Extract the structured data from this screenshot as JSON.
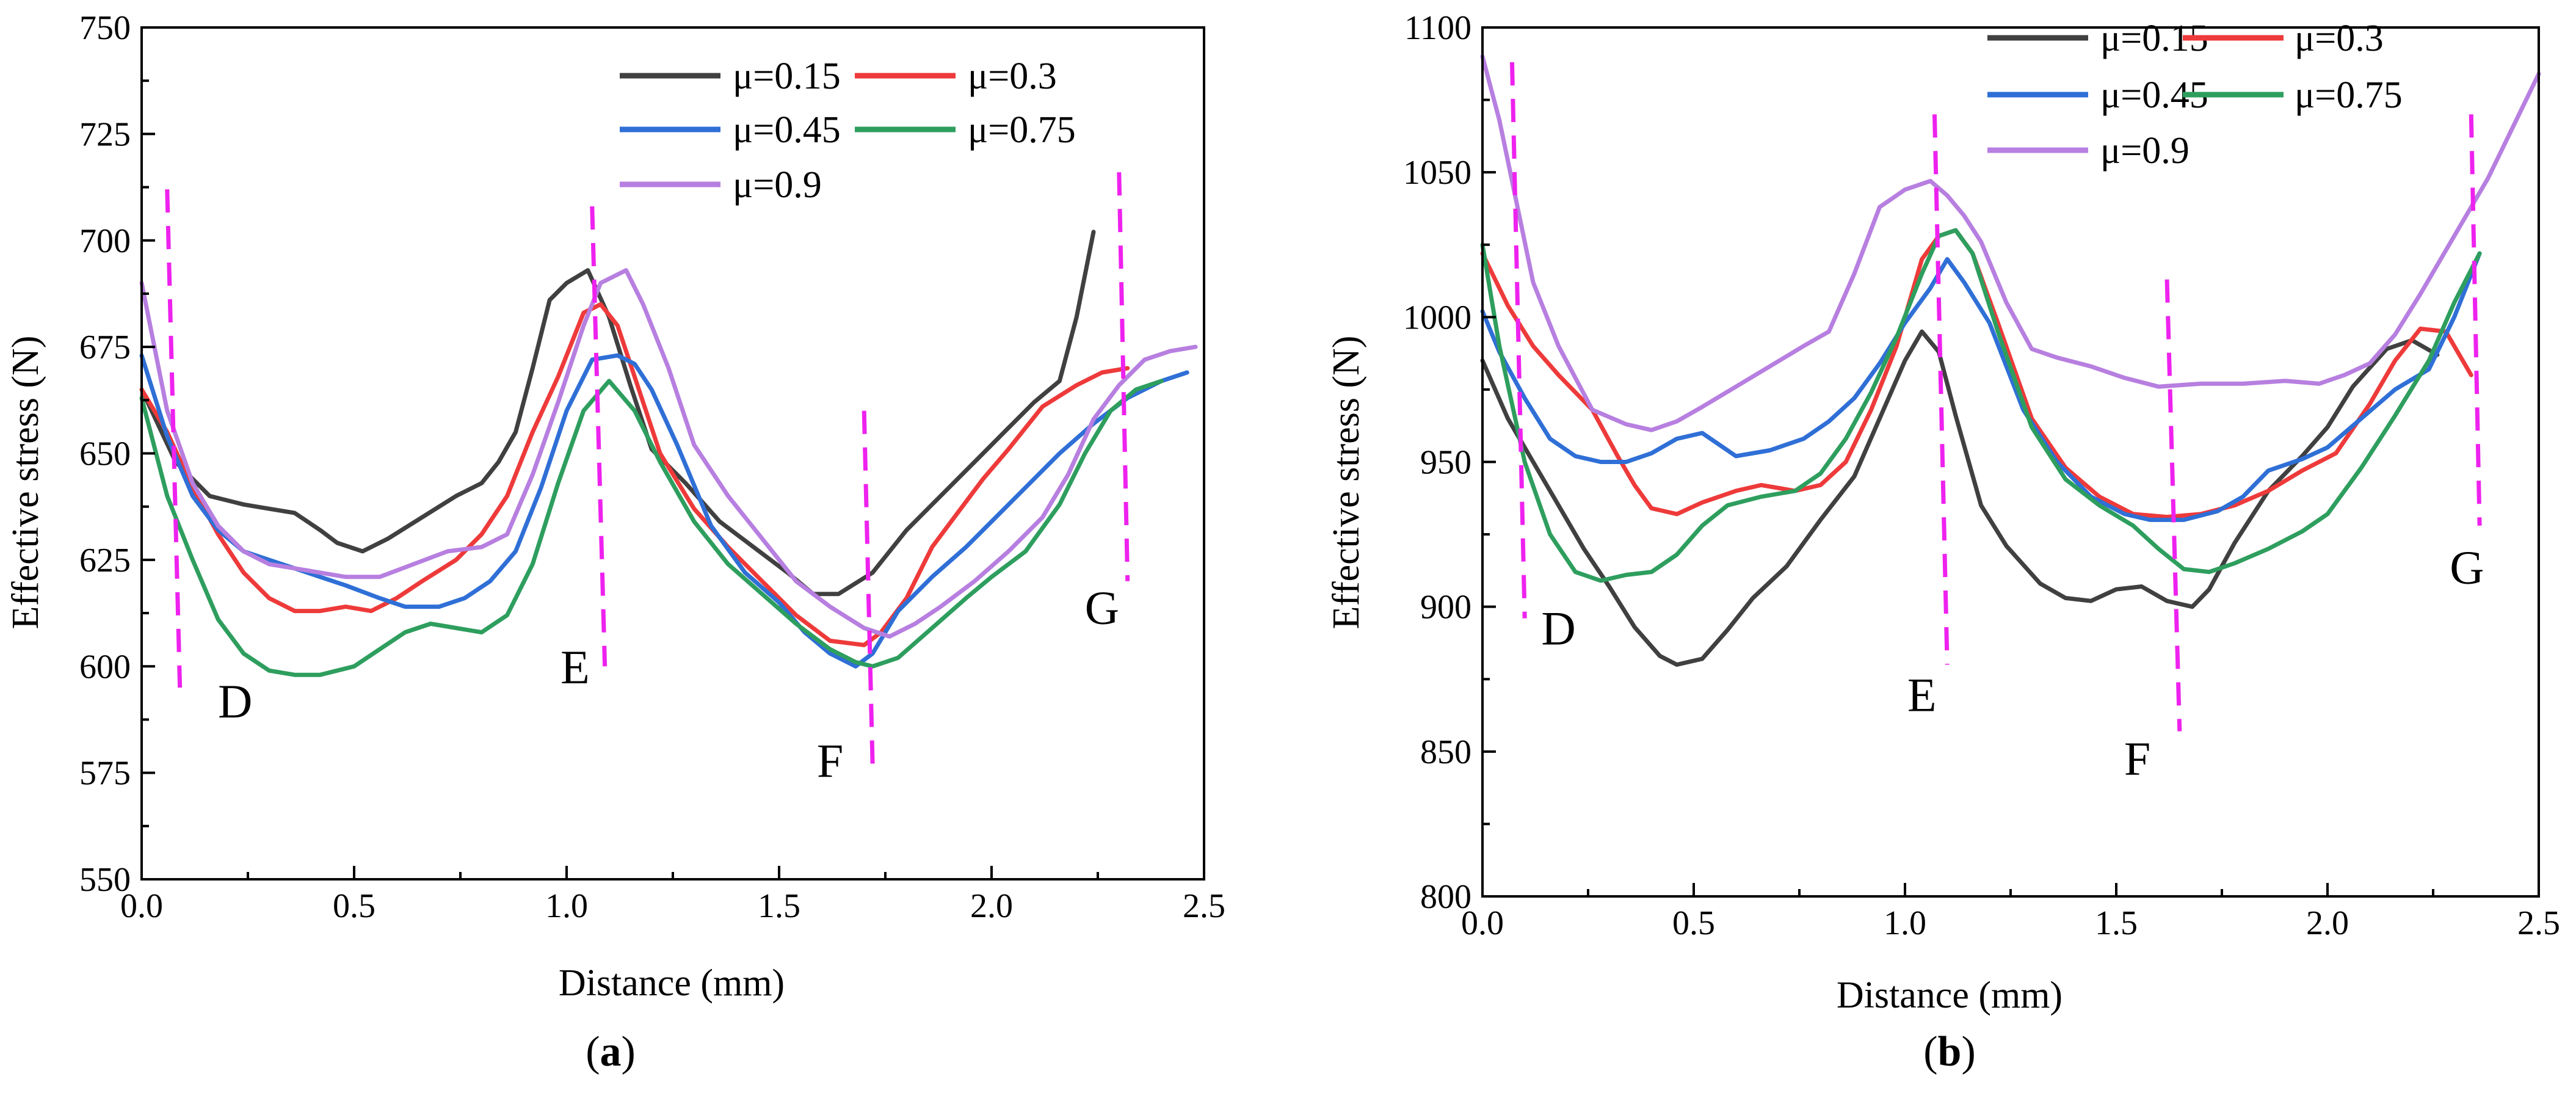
{
  "colors": {
    "mu_0_15": "#404040",
    "mu_0_3": "#ee3a3a",
    "mu_0_45": "#2f6fd6",
    "mu_0_75": "#2e9e5e",
    "mu_0_9": "#b77fe0",
    "divider": "#ee22ee"
  },
  "chart_data": [
    {
      "type": "line",
      "panel_label": {
        "open": "(",
        "letter": "a",
        "close": ")"
      },
      "xlabel": "Distance (mm)",
      "ylabel": "Effective stress (N)",
      "xlim": [
        0,
        2.5
      ],
      "ylim": [
        550,
        750
      ],
      "xticks": [
        0,
        0.5,
        1.0,
        1.5,
        2.0,
        2.5
      ],
      "xtick_labels": [
        "0.0",
        "0.5",
        "1.0",
        "1.5",
        "2.0",
        "2.5"
      ],
      "yticks": [
        550,
        575,
        600,
        625,
        650,
        675,
        700,
        725,
        750
      ],
      "ytick_labels": [
        "550",
        "575",
        "600",
        "625",
        "650",
        "675",
        "700",
        "725",
        "750"
      ],
      "legend": [
        "μ=0.15",
        "μ=0.3",
        "μ=0.45",
        "μ=0.75",
        "μ=0.9"
      ],
      "series": [
        {
          "name": "μ=0.15",
          "color_key": "mu_0_15",
          "x": [
            0,
            0.08,
            0.16,
            0.24,
            0.3,
            0.36,
            0.42,
            0.46,
            0.52,
            0.58,
            0.66,
            0.74,
            0.8,
            0.84,
            0.88,
            0.92,
            0.96,
            1.0,
            1.05,
            1.1,
            1.15,
            1.2,
            1.28,
            1.36,
            1.44,
            1.52,
            1.58,
            1.64,
            1.72,
            1.8,
            1.88,
            1.96,
            2.04,
            2.1,
            2.16,
            2.2,
            2.24
          ],
          "y": [
            665,
            648,
            640,
            638,
            637,
            636,
            632,
            629,
            627,
            630,
            635,
            640,
            643,
            648,
            655,
            670,
            686,
            690,
            693,
            682,
            666,
            651,
            643,
            634,
            628,
            622,
            617,
            617,
            622,
            632,
            640,
            648,
            656,
            662,
            667,
            682,
            702
          ]
        },
        {
          "name": "μ=0.3",
          "color_key": "mu_0_3",
          "x": [
            0,
            0.06,
            0.12,
            0.18,
            0.24,
            0.3,
            0.36,
            0.42,
            0.48,
            0.54,
            0.6,
            0.66,
            0.74,
            0.8,
            0.86,
            0.92,
            0.98,
            1.04,
            1.08,
            1.12,
            1.16,
            1.22,
            1.3,
            1.38,
            1.46,
            1.54,
            1.62,
            1.7,
            1.74,
            1.8,
            1.86,
            1.92,
            1.98,
            2.04,
            2.12,
            2.2,
            2.26,
            2.32
          ],
          "y": [
            665,
            655,
            642,
            631,
            622,
            616,
            613,
            613,
            614,
            613,
            616,
            620,
            625,
            631,
            640,
            655,
            668,
            683,
            685,
            680,
            668,
            650,
            637,
            628,
            620,
            612,
            606,
            605,
            608,
            616,
            628,
            636,
            644,
            651,
            661,
            666,
            669,
            670
          ]
        },
        {
          "name": "μ=0.45",
          "color_key": "mu_0_45",
          "x": [
            0,
            0.06,
            0.12,
            0.18,
            0.24,
            0.3,
            0.36,
            0.42,
            0.48,
            0.56,
            0.62,
            0.7,
            0.76,
            0.82,
            0.88,
            0.94,
            1.0,
            1.06,
            1.12,
            1.16,
            1.2,
            1.26,
            1.34,
            1.42,
            1.5,
            1.56,
            1.62,
            1.68,
            1.72,
            1.78,
            1.86,
            1.94,
            2.0,
            2.08,
            2.16,
            2.24,
            2.32,
            2.4,
            2.46
          ],
          "y": [
            673,
            654,
            640,
            632,
            627,
            625,
            623,
            621,
            619,
            616,
            614,
            614,
            616,
            620,
            627,
            642,
            660,
            672,
            673,
            671,
            665,
            652,
            633,
            622,
            615,
            608,
            603,
            600,
            603,
            613,
            621,
            628,
            634,
            642,
            650,
            657,
            663,
            667,
            669
          ]
        },
        {
          "name": "μ=0.75",
          "color_key": "mu_0_75",
          "x": [
            0,
            0.06,
            0.12,
            0.18,
            0.24,
            0.3,
            0.36,
            0.42,
            0.5,
            0.56,
            0.62,
            0.68,
            0.74,
            0.8,
            0.86,
            0.92,
            0.98,
            1.04,
            1.1,
            1.16,
            1.22,
            1.3,
            1.38,
            1.46,
            1.54,
            1.62,
            1.68,
            1.72,
            1.78,
            1.86,
            1.94,
            2.0,
            2.08,
            2.16,
            2.22,
            2.28,
            2.34,
            2.4
          ],
          "y": [
            663,
            640,
            625,
            611,
            603,
            599,
            598,
            598,
            600,
            604,
            608,
            610,
            609,
            608,
            612,
            624,
            643,
            660,
            667,
            660,
            648,
            634,
            624,
            617,
            610,
            604,
            601,
            600,
            602,
            609,
            616,
            621,
            627,
            638,
            650,
            660,
            665,
            667
          ]
        },
        {
          "name": "μ=0.9",
          "color_key": "mu_0_9",
          "x": [
            0,
            0.06,
            0.12,
            0.18,
            0.24,
            0.3,
            0.36,
            0.42,
            0.48,
            0.56,
            0.64,
            0.72,
            0.8,
            0.86,
            0.92,
            0.98,
            1.04,
            1.08,
            1.14,
            1.18,
            1.24,
            1.3,
            1.38,
            1.46,
            1.54,
            1.62,
            1.7,
            1.76,
            1.82,
            1.88,
            1.96,
            2.04,
            2.12,
            2.18,
            2.24,
            2.3,
            2.36,
            2.42,
            2.48
          ],
          "y": [
            690,
            660,
            643,
            633,
            627,
            624,
            623,
            622,
            621,
            621,
            624,
            627,
            628,
            631,
            645,
            662,
            680,
            690,
            693,
            685,
            670,
            652,
            640,
            630,
            620,
            614,
            609,
            607,
            610,
            614,
            620,
            627,
            635,
            645,
            658,
            666,
            672,
            674,
            675
          ]
        }
      ],
      "dividers": [
        {
          "x": [
            0.06,
            0.09
          ],
          "y": [
            712,
            595
          ]
        },
        {
          "x": [
            1.06,
            1.09
          ],
          "y": [
            708,
            600
          ]
        },
        {
          "x": [
            1.7,
            1.72
          ],
          "y": [
            660,
            577
          ]
        },
        {
          "x": [
            2.3,
            2.32
          ],
          "y": [
            716,
            620
          ]
        }
      ],
      "annotations": [
        {
          "text": "D",
          "x": 0.22,
          "y": 588
        },
        {
          "text": "E",
          "x": 1.02,
          "y": 596
        },
        {
          "text": "F",
          "x": 1.62,
          "y": 574
        },
        {
          "text": "G",
          "x": 2.26,
          "y": 610
        }
      ]
    },
    {
      "type": "line",
      "panel_label": {
        "open": "(",
        "letter": "b",
        "close": ")"
      },
      "xlabel": "Distance (mm)",
      "ylabel": "Effective stress (N)",
      "xlim": [
        0,
        2.5
      ],
      "ylim": [
        800,
        1100
      ],
      "xticks": [
        0,
        0.5,
        1.0,
        1.5,
        2.0,
        2.5
      ],
      "xtick_labels": [
        "0.0",
        "0.5",
        "1.0",
        "1.5",
        "2.0",
        "2.5"
      ],
      "yticks": [
        800,
        850,
        900,
        950,
        1000,
        1050,
        1100
      ],
      "ytick_labels": [
        "800",
        "850",
        "900",
        "950",
        "1000",
        "1050",
        "1100"
      ],
      "legend": [
        "μ=0.15",
        "μ=0.3",
        "μ=0.45",
        "μ=0.75",
        "μ=0.9"
      ],
      "series": [
        {
          "name": "μ=0.15",
          "color_key": "mu_0_15",
          "x": [
            0,
            0.06,
            0.12,
            0.18,
            0.24,
            0.3,
            0.36,
            0.42,
            0.46,
            0.52,
            0.58,
            0.64,
            0.72,
            0.8,
            0.88,
            0.94,
            1.0,
            1.04,
            1.08,
            1.12,
            1.18,
            1.24,
            1.32,
            1.38,
            1.44,
            1.5,
            1.56,
            1.62,
            1.68,
            1.72,
            1.78,
            1.86,
            1.94,
            2.0,
            2.06,
            2.14,
            2.2,
            2.26
          ],
          "y": [
            985,
            965,
            950,
            935,
            920,
            907,
            893,
            883,
            880,
            882,
            892,
            903,
            914,
            930,
            945,
            965,
            985,
            995,
            988,
            966,
            935,
            921,
            908,
            903,
            902,
            906,
            907,
            902,
            900,
            906,
            922,
            940,
            952,
            962,
            976,
            989,
            992,
            987
          ]
        },
        {
          "name": "μ=0.3",
          "color_key": "mu_0_3",
          "x": [
            0,
            0.06,
            0.12,
            0.18,
            0.26,
            0.32,
            0.36,
            0.4,
            0.46,
            0.52,
            0.6,
            0.66,
            0.74,
            0.8,
            0.86,
            0.92,
            0.98,
            1.04,
            1.08,
            1.12,
            1.16,
            1.22,
            1.3,
            1.38,
            1.46,
            1.54,
            1.62,
            1.7,
            1.78,
            1.86,
            1.94,
            2.02,
            2.1,
            2.16,
            2.22,
            2.28,
            2.34
          ],
          "y": [
            1022,
            1004,
            990,
            980,
            968,
            952,
            942,
            934,
            932,
            936,
            940,
            942,
            940,
            942,
            950,
            968,
            990,
            1020,
            1028,
            1030,
            1022,
            998,
            965,
            948,
            938,
            932,
            931,
            932,
            935,
            940,
            947,
            953,
            970,
            985,
            996,
            995,
            980
          ]
        },
        {
          "name": "μ=0.45",
          "color_key": "mu_0_45",
          "x": [
            0,
            0.04,
            0.1,
            0.16,
            0.22,
            0.28,
            0.34,
            0.4,
            0.46,
            0.52,
            0.6,
            0.68,
            0.76,
            0.82,
            0.88,
            0.94,
            1.0,
            1.06,
            1.1,
            1.14,
            1.2,
            1.28,
            1.36,
            1.44,
            1.52,
            1.58,
            1.66,
            1.74,
            1.8,
            1.86,
            1.94,
            2.0,
            2.08,
            2.16,
            2.24,
            2.3,
            2.36
          ],
          "y": [
            1002,
            988,
            972,
            958,
            952,
            950,
            950,
            953,
            958,
            960,
            952,
            954,
            958,
            964,
            972,
            984,
            998,
            1010,
            1020,
            1012,
            998,
            968,
            950,
            938,
            932,
            930,
            930,
            933,
            938,
            947,
            951,
            955,
            965,
            975,
            982,
            1000,
            1022
          ]
        },
        {
          "name": "μ=0.75",
          "color_key": "mu_0_75",
          "x": [
            0,
            0.04,
            0.1,
            0.16,
            0.22,
            0.28,
            0.34,
            0.4,
            0.46,
            0.52,
            0.58,
            0.66,
            0.74,
            0.8,
            0.86,
            0.92,
            0.98,
            1.04,
            1.08,
            1.12,
            1.16,
            1.22,
            1.3,
            1.38,
            1.46,
            1.54,
            1.6,
            1.66,
            1.72,
            1.78,
            1.86,
            1.94,
            2.0,
            2.08,
            2.16,
            2.24,
            2.3,
            2.36
          ],
          "y": [
            1025,
            990,
            950,
            925,
            912,
            909,
            911,
            912,
            918,
            928,
            935,
            938,
            940,
            946,
            958,
            974,
            993,
            1015,
            1028,
            1030,
            1022,
            995,
            962,
            944,
            935,
            928,
            920,
            913,
            912,
            915,
            920,
            926,
            932,
            948,
            966,
            985,
            1005,
            1022
          ]
        },
        {
          "name": "μ=0.9",
          "color_key": "mu_0_9",
          "x": [
            0,
            0.04,
            0.08,
            0.12,
            0.18,
            0.26,
            0.34,
            0.4,
            0.46,
            0.52,
            0.6,
            0.68,
            0.76,
            0.82,
            0.88,
            0.94,
            1.0,
            1.06,
            1.1,
            1.14,
            1.18,
            1.24,
            1.3,
            1.36,
            1.44,
            1.52,
            1.6,
            1.7,
            1.8,
            1.9,
            1.98,
            2.04,
            2.1,
            2.16,
            2.22,
            2.3,
            2.38,
            2.44,
            2.5
          ],
          "y": [
            1090,
            1068,
            1040,
            1012,
            990,
            968,
            963,
            961,
            964,
            969,
            976,
            983,
            990,
            995,
            1015,
            1038,
            1044,
            1047,
            1042,
            1035,
            1026,
            1005,
            989,
            986,
            983,
            979,
            976,
            977,
            977,
            978,
            977,
            980,
            984,
            994,
            1008,
            1028,
            1048,
            1066,
            1084
          ]
        }
      ],
      "dividers": [
        {
          "x": [
            0.07,
            0.1
          ],
          "y": [
            1088,
            896
          ]
        },
        {
          "x": [
            1.07,
            1.1
          ],
          "y": [
            1070,
            880
          ]
        },
        {
          "x": [
            1.62,
            1.65
          ],
          "y": [
            1013,
            857
          ]
        },
        {
          "x": [
            2.34,
            2.36
          ],
          "y": [
            1070,
            928
          ]
        }
      ],
      "annotations": [
        {
          "text": "D",
          "x": 0.18,
          "y": 887
        },
        {
          "text": "E",
          "x": 1.04,
          "y": 864
        },
        {
          "text": "F",
          "x": 1.55,
          "y": 842
        },
        {
          "text": "G",
          "x": 2.33,
          "y": 908
        }
      ]
    }
  ]
}
